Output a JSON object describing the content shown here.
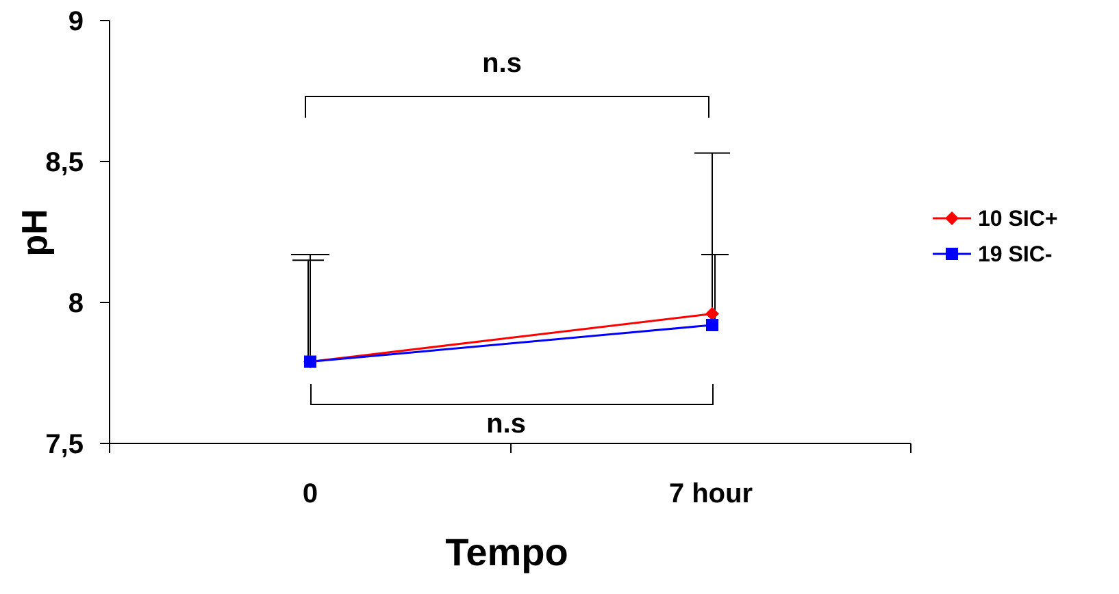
{
  "chart_data": {
    "type": "line",
    "title": "",
    "xlabel": "Tempo",
    "ylabel": "pH",
    "categories": [
      "0",
      "7 hour"
    ],
    "ylim": [
      7.5,
      9
    ],
    "yticks": [
      7.5,
      8,
      8.5,
      9
    ],
    "ytick_labels": [
      "7,5",
      "8",
      "8,5",
      "9"
    ],
    "grid": false,
    "legend_position": "right",
    "series": [
      {
        "name": "10 SIC+",
        "color": "#ff0000",
        "marker": "diamond",
        "values": [
          7.79,
          7.96
        ],
        "error_upper": [
          8.17,
          8.53
        ]
      },
      {
        "name": "19 SIC-",
        "color": "#0000ff",
        "marker": "square",
        "values": [
          7.79,
          7.92
        ],
        "error_upper": [
          8.15,
          8.17
        ]
      }
    ],
    "annotations": [
      {
        "text": "n.s",
        "position": "above"
      },
      {
        "text": "n.s",
        "position": "below"
      }
    ]
  }
}
